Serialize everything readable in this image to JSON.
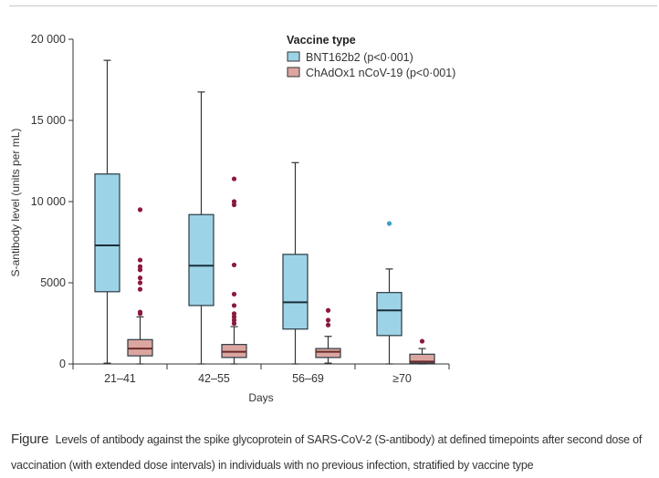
{
  "chart_data": {
    "type": "boxplot",
    "title": "",
    "xlabel": "Days",
    "ylabel": "S-antibody level (units per mL)",
    "ylim": [
      0,
      20000
    ],
    "yticks": [
      0,
      5000,
      10000,
      15000,
      20000
    ],
    "ytick_labels": [
      "0",
      "5000",
      "10 000",
      "15 000",
      "20 000"
    ],
    "categories": [
      "21–41",
      "42–55",
      "56–69",
      "≥70"
    ],
    "legend": {
      "title": "Vaccine type",
      "placement": "top-right",
      "entries": [
        {
          "name": "BNT162b2 (p<0·001)",
          "color": "#9dd3e6"
        },
        {
          "name": "ChAdOx1 nCoV-19 (p<0·001)",
          "color": "#dca6a0"
        }
      ]
    },
    "series": [
      {
        "name": "BNT162b2",
        "fill": "#9dd3e6",
        "outlier_color": "#3aa0c8",
        "boxes": [
          {
            "category": "21–41",
            "min": 50,
            "q1": 4450,
            "median": 7300,
            "q3": 11700,
            "max": 18700,
            "outliers": []
          },
          {
            "category": "42–55",
            "min": 0,
            "q1": 3600,
            "median": 6050,
            "q3": 9200,
            "max": 16750,
            "outliers": []
          },
          {
            "category": "56–69",
            "min": 0,
            "q1": 2150,
            "median": 3800,
            "q3": 6750,
            "max": 12400,
            "outliers": []
          },
          {
            "category": "≥70",
            "min": 0,
            "q1": 1750,
            "median": 3300,
            "q3": 4400,
            "max": 5850,
            "outliers": [
              8650
            ]
          }
        ]
      },
      {
        "name": "ChAdOx1 nCoV-19",
        "fill": "#dca6a0",
        "outlier_color": "#8b1a3c",
        "boxes": [
          {
            "category": "21–41",
            "min": 0,
            "q1": 500,
            "median": 950,
            "q3": 1500,
            "max": 2900,
            "outliers": [
              9500,
              6400,
              6000,
              5800,
              5300,
              5000,
              4600,
              3200,
              3100
            ]
          },
          {
            "category": "42–55",
            "min": 0,
            "q1": 400,
            "median": 750,
            "q3": 1200,
            "max": 2300,
            "outliers": [
              11400,
              10000,
              9800,
              6100,
              4300,
              3600,
              3100,
              2900,
              2700,
              2500
            ]
          },
          {
            "category": "56–69",
            "min": 50,
            "q1": 400,
            "median": 750,
            "q3": 950,
            "max": 1700,
            "outliers": [
              3300,
              2700,
              2400
            ]
          },
          {
            "category": "≥70",
            "min": 0,
            "q1": 50,
            "median": 150,
            "q3": 600,
            "max": 950,
            "outliers": [
              1400
            ]
          }
        ]
      }
    ],
    "grid": false
  },
  "caption": {
    "label": "Figure",
    "text": "Levels of antibody against the spike glycoprotein of SARS-CoV-2 (S-antibody) at defined timepoints after second dose of vaccination (with extended dose intervals) in individuals with no previous infection, stratified by vaccine type"
  }
}
